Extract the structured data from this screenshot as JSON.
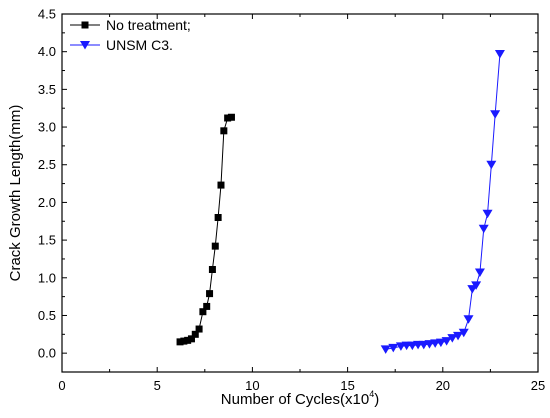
{
  "chart_data": {
    "type": "line",
    "title": "",
    "xlabel": "Number of Cycles(x10",
    "xlabel_sup": "4",
    "xlabel_close": ")",
    "ylabel": "Crack Growth Length(mm)",
    "xlim": [
      0,
      25
    ],
    "ylim": [
      -0.25,
      4.5
    ],
    "xticks": [
      "0",
      "5",
      "10",
      "15",
      "20",
      "25"
    ],
    "yticks": [
      "0.0",
      "0.5",
      "1.0",
      "1.5",
      "2.0",
      "2.5",
      "3.0",
      "3.5",
      "4.0",
      "4.5"
    ],
    "grid": false,
    "legend_position": "top-left",
    "series": [
      {
        "name": "No treatment;",
        "color": "#000000",
        "marker": "square",
        "x": [
          6.2,
          6.4,
          6.6,
          6.8,
          7.0,
          7.2,
          7.4,
          7.6,
          7.75,
          7.9,
          8.05,
          8.2,
          8.35,
          8.5,
          8.7,
          8.9
        ],
        "y": [
          0.15,
          0.16,
          0.17,
          0.19,
          0.25,
          0.32,
          0.55,
          0.62,
          0.79,
          1.11,
          1.42,
          1.8,
          2.23,
          2.95,
          3.12,
          3.13
        ]
      },
      {
        "name": "UNSM C3.",
        "color": "#1a1aff",
        "marker": "triangle-down",
        "x": [
          17.0,
          17.4,
          17.8,
          18.1,
          18.4,
          18.7,
          19.0,
          19.3,
          19.6,
          19.9,
          20.2,
          20.5,
          20.8,
          21.1,
          21.35,
          21.55,
          21.75,
          21.95,
          22.15,
          22.35,
          22.55,
          22.75,
          23.0
        ],
        "y": [
          0.05,
          0.07,
          0.09,
          0.1,
          0.1,
          0.11,
          0.11,
          0.12,
          0.13,
          0.14,
          0.16,
          0.2,
          0.23,
          0.27,
          0.45,
          0.85,
          0.9,
          1.07,
          1.65,
          1.85,
          2.5,
          3.17,
          3.97
        ]
      }
    ]
  }
}
